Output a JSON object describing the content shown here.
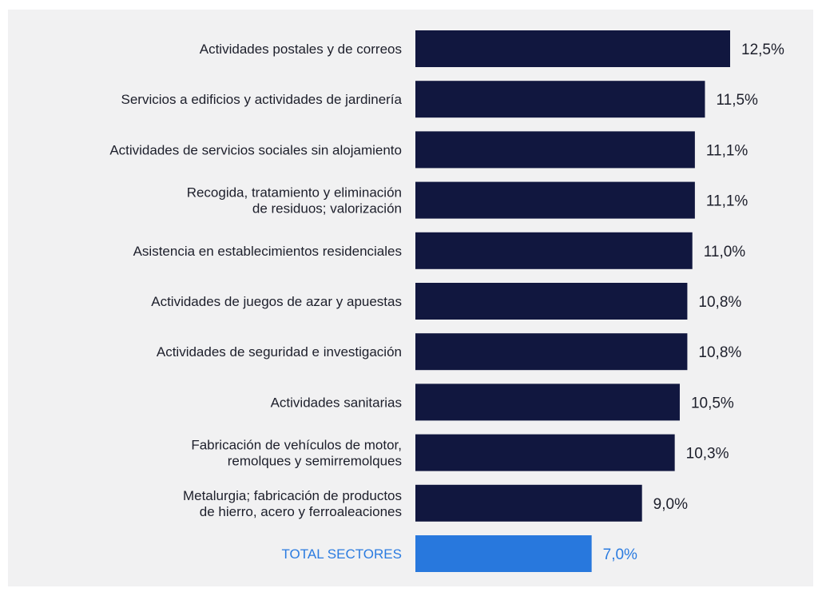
{
  "colors": {
    "bar": "#11173f",
    "highlight": "#2878dd",
    "text": "#1d1f2b",
    "highlight_text": "#2a7be0",
    "background": "#f1f1f2"
  },
  "chart_data": {
    "type": "bar",
    "orientation": "horizontal",
    "title": "",
    "xlabel": "",
    "ylabel": "",
    "grid": false,
    "legend": "none",
    "categories": [
      "Actividades postales y de correos",
      "Servicios a edificios y actividades de jardinería",
      "Actividades de servicios sociales sin alojamiento",
      "Recogida, tratamiento y eliminación\nde residuos; valorización",
      "Asistencia en establecimientos residenciales",
      "Actividades de juegos de azar y apuestas",
      "Actividades de seguridad e investigación",
      "Actividades sanitarias",
      "Fabricación de vehículos de motor,\nremolques y semirremolques",
      "Metalurgia; fabricación de productos\nde hierro, acero y ferroaleaciones",
      "TOTAL SECTORES"
    ],
    "values": [
      12.5,
      11.5,
      11.1,
      11.1,
      11.0,
      10.8,
      10.8,
      10.5,
      10.3,
      9.0,
      7.0
    ],
    "value_labels": [
      "12,5%",
      "11,5%",
      "11,1%",
      "11,1%",
      "11,0%",
      "10,8%",
      "10,8%",
      "10,5%",
      "10,3%",
      "9,0%",
      "7,0%"
    ],
    "highlighted_category": "TOTAL SECTORES",
    "xlim": [
      0,
      12.5
    ]
  }
}
